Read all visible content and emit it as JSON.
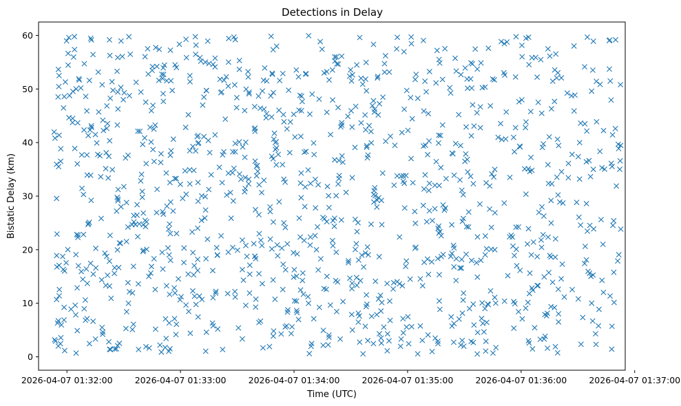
{
  "chart_data": {
    "type": "scatter",
    "title": "Detections in Delay",
    "xlabel": "Time (UTC)",
    "ylabel": "Bistatic Delay (km)",
    "x_is_time": true,
    "xlim": [
      "2026-04-07 01:31:45",
      "2026-04-07 01:36:55"
    ],
    "ylim": [
      -2.5,
      62.5
    ],
    "xticks": [
      "2026-04-07 01:32:00",
      "2026-04-07 01:33:00",
      "2026-04-07 01:34:00",
      "2026-04-07 01:35:00",
      "2026-04-07 01:36:00",
      "2026-04-07 01:37:00"
    ],
    "yticks": [
      0,
      10,
      20,
      30,
      40,
      50,
      60
    ],
    "marker": "x",
    "color": "#1f77b4",
    "grid": false,
    "x_start": "2026-04-07 01:31:53",
    "x_end": "2026-04-07 01:36:53",
    "y_min": 0.5,
    "y_max": 60,
    "point_count": 1200
  }
}
